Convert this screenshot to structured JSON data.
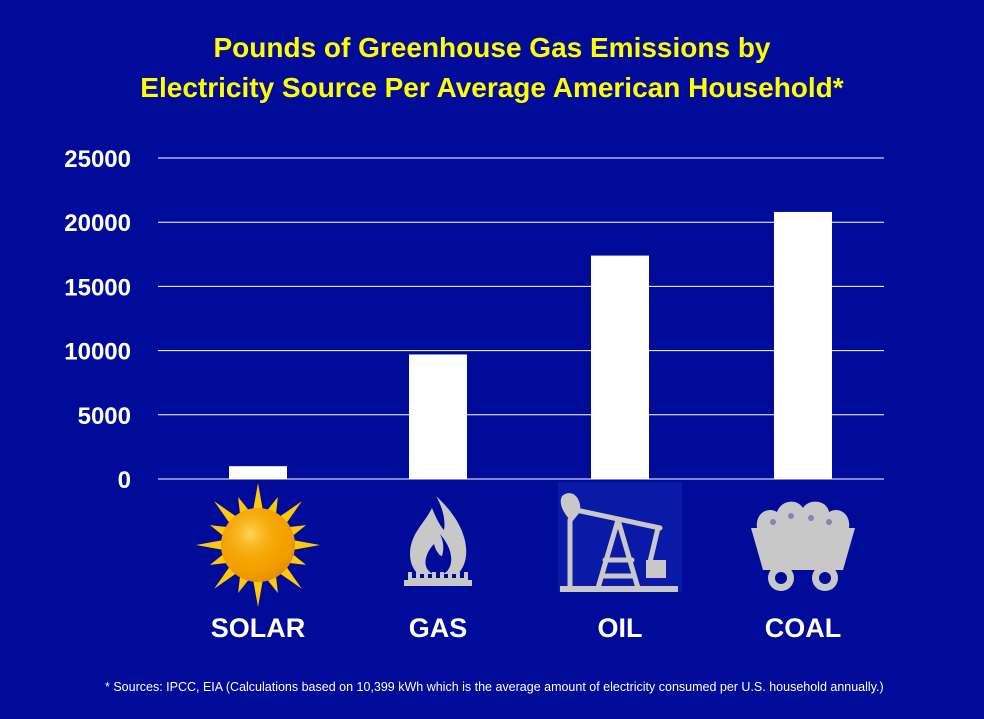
{
  "chart_data": {
    "type": "bar",
    "title_lines": [
      "Pounds of Greenhouse Gas Emissions by",
      "Electricity Source Per Average American Household*"
    ],
    "categories": [
      "SOLAR",
      "GAS",
      "OIL",
      "COAL"
    ],
    "values": [
      1000,
      9700,
      17400,
      20800
    ],
    "icons": [
      "sun-icon",
      "gas-flame-icon",
      "oil-pump-icon",
      "coal-cart-icon"
    ],
    "yticks": [
      "0",
      "5000",
      "10000",
      "15000",
      "20000",
      "25000"
    ],
    "ylim": [
      0,
      25000
    ],
    "grid": true,
    "footnote": "* Sources: IPCC, EIA (Calculations based on 10,399 kWh which is the average amount of electricity consumed per U.S. household annually.)",
    "colors": {
      "background": "#000b99",
      "title": "#ffff00",
      "bar": "#ffffff",
      "text": "#ffffff",
      "gridline": "#ffffff",
      "sun_core": "#f5a300",
      "sun_rays": "#ffc90a",
      "icon_gray": "#c8c8c8"
    }
  }
}
